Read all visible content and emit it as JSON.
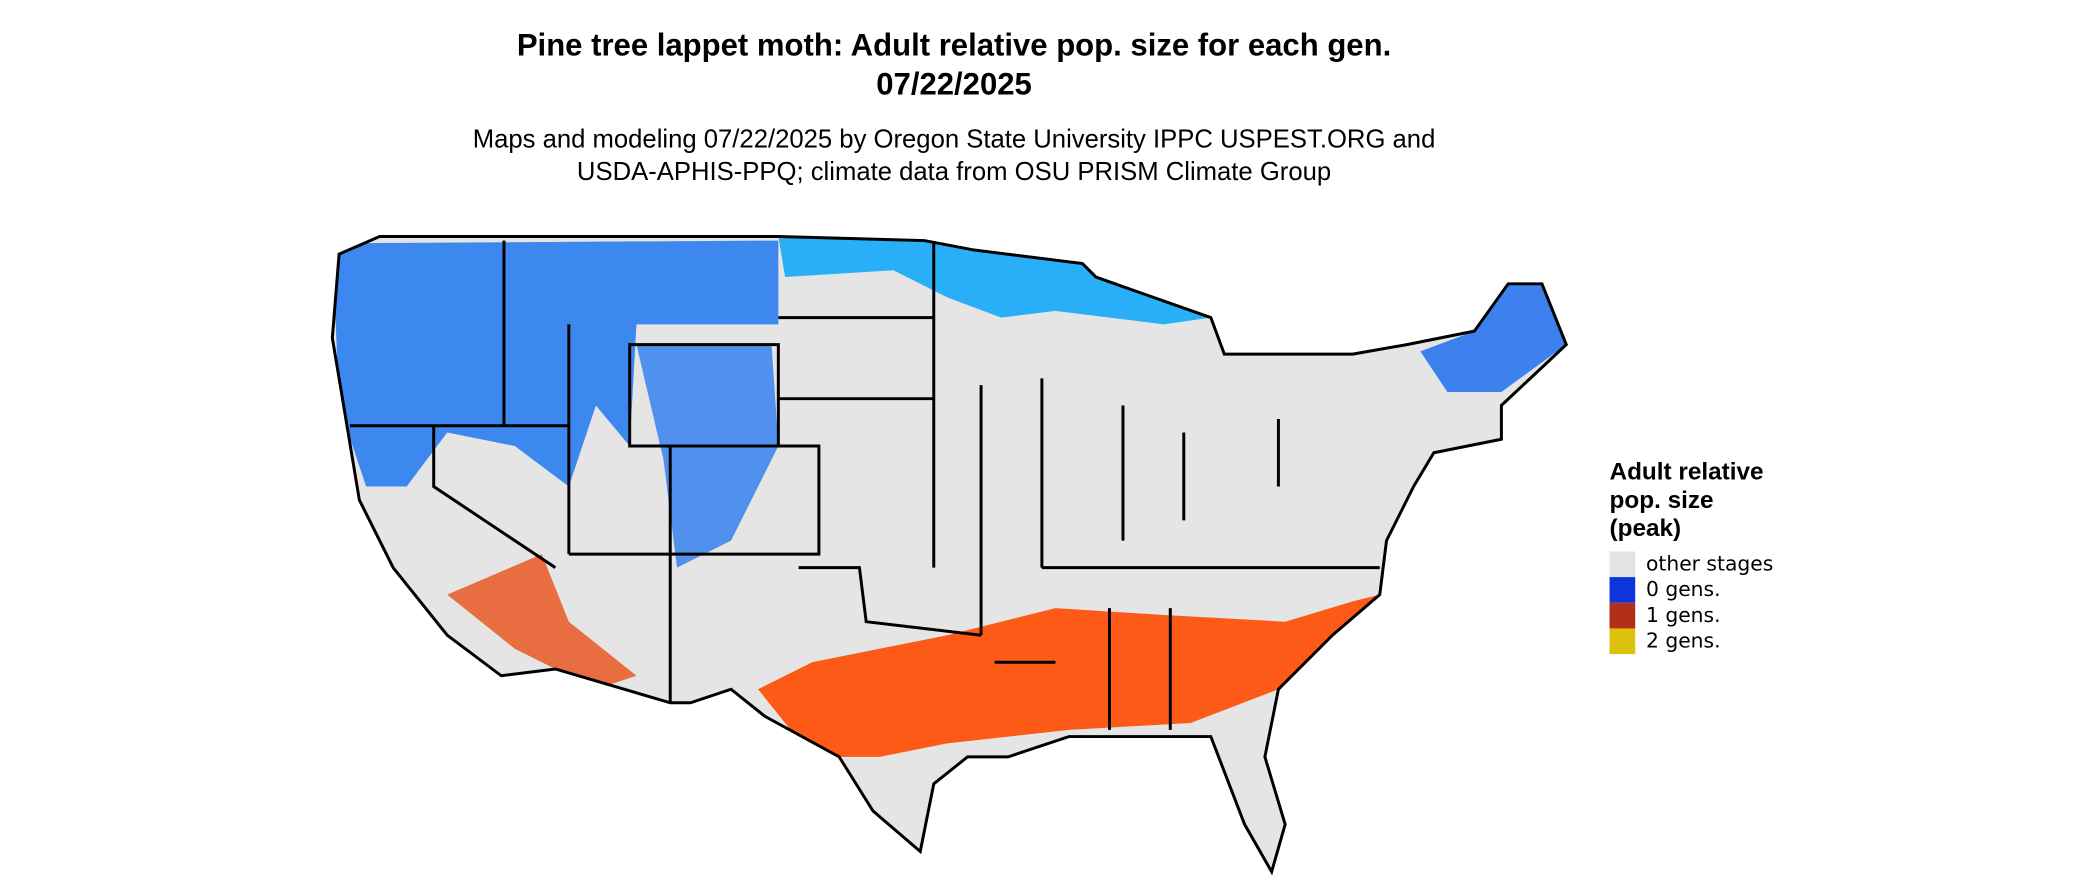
{
  "title": "Pine tree lappet moth: Adult relative pop. size for each gen.",
  "date": "07/22/2025",
  "subtitle": [
    "Maps and modeling 07/22/2025 by Oregon State University IPPC USPEST.ORG and",
    "USDA-APHIS-PPQ; climate data from OSU PRISM Climate Group"
  ],
  "legend": {
    "title": [
      "Adult relative",
      "pop. size",
      "(peak)"
    ],
    "items": [
      {
        "label": "other stages",
        "color": "#e3e3e3"
      },
      {
        "label": "0 gens.",
        "color": "#0c36dc"
      },
      {
        "label": "1 gens.",
        "color": "#b2301a"
      },
      {
        "label": "2 gens.",
        "color": "#dcc20c"
      }
    ]
  }
}
